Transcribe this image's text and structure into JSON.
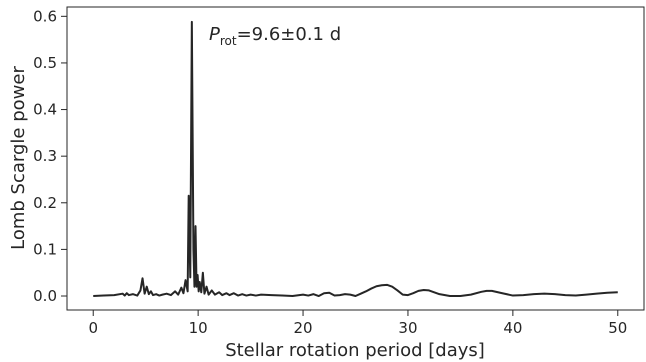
{
  "chart_data": {
    "type": "line",
    "title": "",
    "xlabel": "Stellar rotation period [days]",
    "ylabel": "Lomb Scargle power",
    "xlim": [
      -2.5,
      52.5
    ],
    "ylim": [
      -0.03,
      0.62
    ],
    "xticks": [
      0,
      10,
      20,
      30,
      40,
      50
    ],
    "yticks": [
      0.0,
      0.1,
      0.2,
      0.3,
      0.4,
      0.5,
      0.6
    ],
    "xtick_labels": [
      "0",
      "10",
      "20",
      "30",
      "40",
      "50"
    ],
    "ytick_labels": [
      "0.0",
      "0.1",
      "0.2",
      "0.3",
      "0.4",
      "0.5",
      "0.6"
    ],
    "grid": false,
    "annotation": {
      "var": "P",
      "sub": "rot",
      "rest": "=9.6±0.1 d"
    },
    "series": [
      {
        "color": "#262626",
        "x": [
          0.0,
          1.0,
          2.0,
          2.8,
          3.0,
          3.2,
          3.4,
          3.8,
          4.2,
          4.5,
          4.7,
          4.9,
          5.1,
          5.3,
          5.5,
          5.7,
          6.0,
          6.3,
          6.6,
          7.0,
          7.4,
          7.8,
          8.1,
          8.4,
          8.6,
          8.8,
          9.0,
          9.1,
          9.25,
          9.4,
          9.55,
          9.65,
          9.75,
          9.85,
          9.95,
          10.05,
          10.15,
          10.3,
          10.45,
          10.6,
          10.8,
          11.0,
          11.3,
          11.6,
          12.0,
          12.3,
          12.7,
          13.0,
          13.4,
          13.8,
          14.2,
          14.6,
          15.0,
          15.5,
          16.0,
          17.0,
          18.0,
          19.0,
          20.0,
          20.5,
          21.0,
          21.5,
          22.0,
          22.5,
          23.0,
          23.5,
          24.0,
          24.5,
          25.0,
          25.5,
          26.0,
          26.5,
          27.0,
          27.5,
          28.0,
          28.5,
          29.0,
          29.5,
          30.0,
          30.5,
          31.0,
          31.5,
          32.0,
          32.5,
          33.0,
          34.0,
          35.0,
          36.0,
          37.0,
          37.5,
          38.0,
          39.0,
          40.0,
          41.0,
          42.0,
          43.0,
          44.0,
          45.0,
          46.0,
          47.0,
          48.0,
          49.0,
          50.0
        ],
        "y": [
          0.0,
          0.001,
          0.002,
          0.005,
          0.001,
          0.006,
          0.002,
          0.004,
          0.001,
          0.012,
          0.038,
          0.005,
          0.02,
          0.004,
          0.01,
          0.002,
          0.004,
          0.001,
          0.003,
          0.005,
          0.002,
          0.01,
          0.003,
          0.018,
          0.006,
          0.034,
          0.01,
          0.215,
          0.04,
          0.588,
          0.1,
          0.02,
          0.15,
          0.02,
          0.045,
          0.01,
          0.03,
          0.008,
          0.05,
          0.005,
          0.02,
          0.003,
          0.012,
          0.003,
          0.008,
          0.002,
          0.006,
          0.002,
          0.006,
          0.001,
          0.004,
          0.001,
          0.003,
          0.001,
          0.003,
          0.002,
          0.001,
          0.0,
          0.003,
          0.001,
          0.004,
          0.0,
          0.006,
          0.007,
          0.001,
          0.002,
          0.004,
          0.003,
          0.0,
          0.005,
          0.01,
          0.016,
          0.021,
          0.023,
          0.024,
          0.02,
          0.012,
          0.003,
          0.002,
          0.006,
          0.011,
          0.013,
          0.012,
          0.008,
          0.004,
          0.0,
          0.0,
          0.003,
          0.009,
          0.011,
          0.011,
          0.006,
          0.001,
          0.002,
          0.004,
          0.005,
          0.004,
          0.002,
          0.001,
          0.003,
          0.005,
          0.007,
          0.008
        ]
      }
    ]
  }
}
